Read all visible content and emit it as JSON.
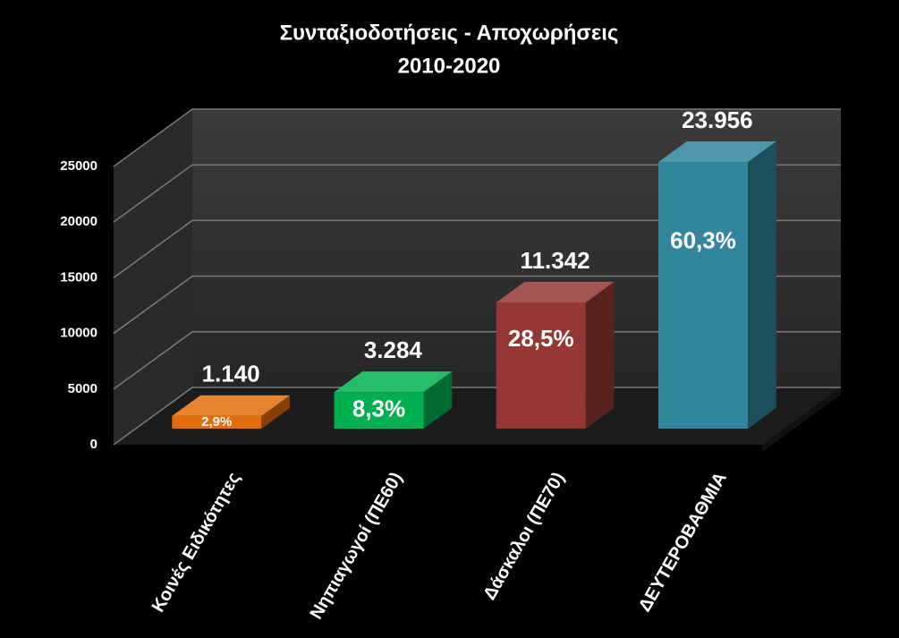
{
  "chart_data": {
    "type": "bar3d",
    "title": "Συνταξιοδοτήσεις - Αποχωρήσεις",
    "subtitle": "2010-2020",
    "categories": [
      "Κοινές Ειδικότητες",
      "Νηπιαγωγοί (ΠΕ60)",
      "Δάσκαλοι (ΠΕ70)",
      "ΔΕΥΤΕΡΟΒΑΘΜΙΑ"
    ],
    "values": [
      1140,
      3284,
      11342,
      23956
    ],
    "value_labels": [
      "1.140",
      "3.284",
      "11.342",
      "23.956"
    ],
    "shares": {
      "values": [
        2.9,
        8.3,
        28.5,
        60.3
      ],
      "value_labels": [
        "2,9%",
        "8,3%",
        "28,5%",
        "60,3%"
      ]
    },
    "colors": [
      "#e36c09",
      "#00b050",
      "#953735",
      "#31859c"
    ],
    "ylim": [
      0,
      25000
    ],
    "yticks": [
      0,
      5000,
      10000,
      15000,
      20000,
      25000
    ],
    "grid": true
  }
}
